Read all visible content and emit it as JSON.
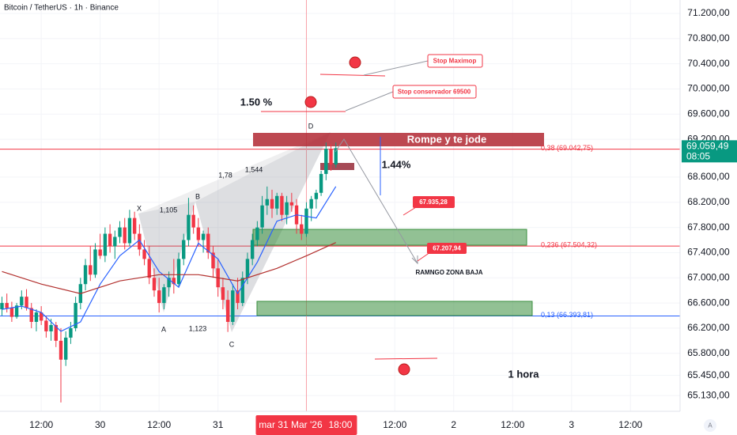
{
  "chart_data": {
    "type": "candlestick",
    "title": "Bitcoin / TetherUS · 1h · Binance",
    "x": [
      4,
      5,
      6,
      7,
      8,
      9,
      10,
      11,
      12,
      13,
      14,
      15,
      16,
      17,
      18,
      19,
      20,
      21,
      22,
      23,
      24,
      25,
      26,
      27,
      28,
      29,
      30,
      31,
      32,
      33,
      34,
      35,
      36,
      37,
      38,
      39,
      40,
      41,
      42,
      43,
      44,
      45,
      46,
      47,
      48,
      49,
      50,
      51,
      52,
      53,
      54,
      55,
      56,
      57,
      58,
      59,
      60,
      61,
      62,
      63,
      64,
      65,
      66,
      67,
      68,
      69,
      70,
      71,
      72
    ],
    "open": [
      66500,
      66600,
      66520,
      66380,
      66560,
      66700,
      66520,
      66300,
      66450,
      66320,
      66150,
      66250,
      66000,
      65700,
      66050,
      66200,
      66600,
      66900,
      67200,
      67050,
      67450,
      67350,
      67700,
      67500,
      67650,
      67800,
      67550,
      67950,
      67700,
      67450,
      67300,
      67000,
      66800,
      66600,
      66850,
      67000,
      66900,
      67300,
      67600,
      68000,
      67800,
      67600,
      67700,
      67400,
      67150,
      66850,
      66650,
      66300,
      66800,
      66600,
      67000,
      67300,
      67600,
      67800,
      68150,
      68250,
      68100,
      68300,
      68000,
      68200,
      68150,
      67850,
      67700,
      68100,
      68250,
      68350,
      68650,
      69050,
      68800
    ],
    "high": [
      66700,
      66750,
      66620,
      66600,
      66800,
      66820,
      66600,
      66500,
      66550,
      66400,
      66350,
      66300,
      66200,
      66150,
      66300,
      66700,
      67000,
      67300,
      67500,
      67550,
      67700,
      67800,
      67850,
      67750,
      67900,
      67950,
      68080,
      68050,
      67850,
      67600,
      67500,
      67150,
      67000,
      66900,
      67100,
      67300,
      67400,
      67700,
      68270,
      68150,
      67950,
      67750,
      67800,
      67500,
      67300,
      67000,
      66800,
      66900,
      67000,
      67100,
      67400,
      67700,
      67900,
      68300,
      68450,
      68400,
      68350,
      68350,
      68300,
      68350,
      68250,
      68000,
      68200,
      68300,
      68400,
      68700,
      69150,
      69120,
      69150
    ],
    "low": [
      66400,
      66450,
      66300,
      66350,
      66500,
      66480,
      66200,
      66150,
      66250,
      66050,
      66000,
      65900,
      65020,
      65600,
      65950,
      66150,
      66500,
      66800,
      66950,
      67000,
      67300,
      67250,
      67400,
      67300,
      67550,
      67450,
      67500,
      67600,
      67350,
      67200,
      66900,
      66700,
      66450,
      66500,
      66700,
      66750,
      66850,
      67200,
      67500,
      67700,
      67500,
      67400,
      67300,
      67000,
      66700,
      66500,
      66140,
      66250,
      66500,
      66550,
      66900,
      67200,
      67500,
      67700,
      68000,
      67950,
      68000,
      67900,
      67850,
      68050,
      67700,
      67600,
      67650,
      67900,
      68100,
      68300,
      68550,
      68700,
      68750
    ],
    "close": [
      66600,
      66520,
      66380,
      66560,
      66700,
      66520,
      66300,
      66450,
      66320,
      66150,
      66250,
      66000,
      65700,
      66050,
      66200,
      66600,
      66900,
      67200,
      67050,
      67450,
      67350,
      67700,
      67500,
      67650,
      67800,
      67550,
      67950,
      67700,
      67450,
      67300,
      67000,
      66800,
      66600,
      66850,
      67000,
      66900,
      67300,
      67600,
      68000,
      67800,
      67600,
      67700,
      67400,
      67150,
      66850,
      66650,
      66300,
      66800,
      66600,
      67000,
      67300,
      67600,
      67800,
      68150,
      68250,
      68100,
      68300,
      68000,
      68200,
      68150,
      67850,
      67700,
      68100,
      68250,
      68350,
      68650,
      69050,
      68800,
      69059.49
    ],
    "up_color": "#089981",
    "down_color": "#f23645",
    "overlays": [
      {
        "color": "#2962ff",
        "x": [
          4,
          8,
          12,
          16,
          20,
          24,
          28,
          32,
          36,
          40,
          44,
          48,
          52,
          56,
          60,
          64,
          68,
          72
        ],
        "values": [
          66500,
          66550,
          66450,
          66150,
          66300,
          66900,
          67350,
          67600,
          67100,
          66850,
          67550,
          67300,
          66750,
          67250,
          67900,
          68000,
          67950,
          68450
        ]
      },
      {
        "color": "#b2302e",
        "x": [
          4,
          12,
          20,
          28,
          36,
          44,
          52,
          60,
          66,
          72
        ],
        "values": [
          67100,
          66900,
          66750,
          66950,
          67050,
          67050,
          66950,
          67150,
          67350,
          67560
        ]
      }
    ],
    "levels": [
      {
        "value": 69042.75,
        "label": "0,38 (69.042,75)",
        "color": "#f23645"
      },
      {
        "value": 67504.32,
        "label": "0,236 (67.504,32)",
        "color": "#f23645"
      },
      {
        "value": 66393.81,
        "label": "0,13 (66.393,81)",
        "color": "#2962ff"
      }
    ],
    "current_price": {
      "value": 69059.49,
      "label": "69.059,49",
      "countdown": "08:05",
      "color": "#089981"
    },
    "crosshair": {
      "x": 66,
      "date": "mar 31 Mar '26",
      "time": "18:00"
    },
    "ylim": [
      64880,
      71413
    ],
    "yticks": [
      {
        "value": 71200,
        "label": "71.200,00"
      },
      {
        "value": 70800,
        "label": "70.800,00"
      },
      {
        "value": 70400,
        "label": "70.400,00"
      },
      {
        "value": 70000,
        "label": "70.000,00"
      },
      {
        "value": 69600,
        "label": "69.600,00"
      },
      {
        "value": 69200,
        "label": "69.200,00"
      },
      {
        "value": 68600,
        "label": "68.600,00"
      },
      {
        "value": 68200,
        "label": "68.200,00"
      },
      {
        "value": 67800,
        "label": "67.800,00"
      },
      {
        "value": 67400,
        "label": "67.400,00"
      },
      {
        "value": 67000,
        "label": "67.000,00"
      },
      {
        "value": 66600,
        "label": "66.600,00"
      },
      {
        "value": 66200,
        "label": "66.200,00"
      },
      {
        "value": 65800,
        "label": "65.800,00"
      },
      {
        "value": 65450,
        "label": "65.450,00"
      },
      {
        "value": 65130,
        "label": "65.130,00"
      }
    ],
    "xlim": [
      3.6,
      142.1
    ],
    "xticks": [
      {
        "value": 12,
        "label": "12:00"
      },
      {
        "value": 24,
        "label": "30"
      },
      {
        "value": 36,
        "label": "12:00"
      },
      {
        "value": 48,
        "label": "31"
      },
      {
        "value": 84,
        "label": "12:00"
      },
      {
        "value": 96,
        "label": "2"
      },
      {
        "value": 108,
        "label": "12:00"
      },
      {
        "value": 120,
        "label": "3"
      },
      {
        "value": 132,
        "label": "12:00"
      }
    ],
    "grid": true
  },
  "annotations": {
    "stop_max": "Stop Maximop",
    "stop_cons": "Stop conservador 69500",
    "pct_1": "1.50 %",
    "pct_2": "1.44%",
    "zone_top": "Rompe y te jode",
    "target_1": "67.935,28",
    "target_2": "67.207,94",
    "range": "RAMNGO ZONA BAJA",
    "timeframe": "1 hora",
    "pattern": {
      "X": "X",
      "A": "A",
      "B": "B",
      "C": "C",
      "D": "D",
      "r1": "1,105",
      "r2": "1,78",
      "r3": "1,544",
      "r4": "1,123"
    },
    "logo": "A"
  }
}
